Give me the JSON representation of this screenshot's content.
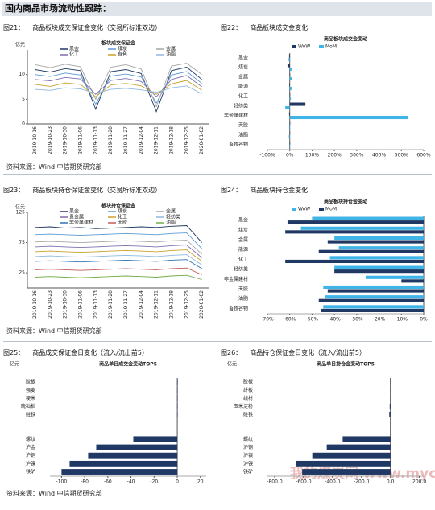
{
  "page_title": "国内商品市场流动性跟踪：",
  "sources": [
    "资料来源：Wind 中信期货研究部",
    "资料来源：Wind 中信期货研究部",
    "资料来源：Wind 中信期货研究部"
  ],
  "watermark": "我的煤炭网 www.mycoal.cn",
  "chart_data": [
    {
      "type": "line",
      "figure": "图21：",
      "caption": "商品板块成交保证金变化（交易所标准双边）",
      "title": "板块成交保证金",
      "y_unit": "亿元",
      "categories": [
        "2019-10-16",
        "2019-10-23",
        "2019-10-30",
        "2019-11-06",
        "2019-11-13",
        "2019-11-20",
        "2019-11-27",
        "2019-12-04",
        "2019-12-11",
        "2019-12-18",
        "2019-12-25",
        "2020-01-02"
      ],
      "ylim": [
        0,
        15
      ],
      "yticks": [
        0,
        5,
        10
      ],
      "series": [
        {
          "name": "黑金",
          "color": "#1f3864",
          "values": [
            11,
            10.5,
            11.2,
            10.8,
            3,
            10.6,
            11,
            10.2,
            2.5,
            10.8,
            11.5,
            9
          ]
        },
        {
          "name": "煤炭",
          "color": "#5b9bd5",
          "values": [
            10,
            9.6,
            10.3,
            9.9,
            4,
            9.7,
            10.1,
            9.5,
            4.2,
            9.9,
            10.6,
            8.2
          ]
        },
        {
          "name": "金属",
          "color": "#a5a5a5",
          "values": [
            12,
            11.4,
            12.1,
            11.6,
            5,
            11.5,
            12,
            11.1,
            3.5,
            11.7,
            12.3,
            10
          ]
        },
        {
          "name": "化工",
          "color": "#7f6fb0",
          "values": [
            9,
            8.7,
            9.4,
            9.1,
            6,
            8.8,
            9.2,
            8.6,
            5.5,
            9.0,
            9.8,
            7.5
          ]
        },
        {
          "name": "有色",
          "color": "#c9a227",
          "values": [
            8,
            7.6,
            8.3,
            8.0,
            5.5,
            7.9,
            8.2,
            7.7,
            6,
            8.1,
            8.8,
            6.8
          ]
        },
        {
          "name": "油脂",
          "color": "#8fb9e0",
          "values": [
            7,
            6.8,
            7.3,
            7.1,
            6.2,
            7.0,
            7.2,
            6.9,
            6.4,
            7.3,
            7.7,
            6.1
          ]
        }
      ]
    },
    {
      "type": "hbar",
      "figure": "图22：",
      "caption": "商品板块成交金变化",
      "title": "商品板块成交金变动",
      "categories": [
        "黑金",
        "煤炭",
        "金属",
        "能源",
        "化工",
        "轻纺类",
        "非金属建材",
        "天胶",
        "油脂",
        "畜牧谷物"
      ],
      "xlim": [
        -100,
        600
      ],
      "xticks": [
        {
          "value": -100,
          "label": "-100%"
        },
        {
          "value": 0,
          "label": "0%"
        },
        {
          "value": 100,
          "label": "100%"
        },
        {
          "value": 200,
          "label": "200%"
        },
        {
          "value": 300,
          "label": "300%"
        },
        {
          "value": 400,
          "label": "400%"
        },
        {
          "value": 500,
          "label": "500%"
        },
        {
          "value": 600,
          "label": "600%"
        }
      ],
      "series": [
        {
          "name": "WoW",
          "color": "#1f3864",
          "values": [
            -3,
            -10,
            2,
            -2,
            2,
            70,
            -3,
            2,
            1,
            1
          ]
        },
        {
          "name": "MoM",
          "color": "#3fb4e6",
          "values": [
            -5,
            8,
            10,
            8,
            5,
            -20,
            530,
            -3,
            -4,
            -2
          ]
        }
      ]
    },
    {
      "type": "line",
      "figure": "图23：",
      "caption": "商品板块持仓保证金变化（交易所标准双边）",
      "title": "板块持仓保证金",
      "y_unit": "亿元",
      "categories": [
        "2019-10-16",
        "2019-10-23",
        "2019-10-30",
        "2019-11-06",
        "2019-11-13",
        "2019-11-20",
        "2019-11-27",
        "2019-12-04",
        "2019-12-11",
        "2019-12-18",
        "2019-12-25",
        "2020-01-02"
      ],
      "ylim": [
        0,
        125
      ],
      "yticks": [
        25,
        75,
        125
      ],
      "series": [
        {
          "name": "黑金",
          "color": "#1f3864",
          "values": [
            100,
            101,
            99,
            100,
            98,
            99,
            100,
            101,
            100,
            102,
            103,
            75
          ]
        },
        {
          "name": "煤炭",
          "color": "#5b9bd5",
          "values": [
            88,
            89,
            88,
            87,
            88,
            89,
            90,
            89,
            88,
            90,
            91,
            65
          ]
        },
        {
          "name": "金属",
          "color": "#a5a5a5",
          "values": [
            76,
            77,
            76,
            75,
            76,
            77,
            78,
            77,
            76,
            78,
            79,
            56
          ]
        },
        {
          "name": "贵金属",
          "color": "#7f6fb0",
          "values": [
            68,
            69,
            68,
            67,
            68,
            69,
            70,
            69,
            68,
            70,
            71,
            50
          ]
        },
        {
          "name": "化工",
          "color": "#c9a227",
          "values": [
            60,
            61,
            60,
            59,
            60,
            61,
            62,
            61,
            60,
            62,
            63,
            44
          ]
        },
        {
          "name": "轻纺类",
          "color": "#8fb9e0",
          "values": [
            52,
            53,
            52,
            51,
            52,
            53,
            54,
            53,
            52,
            54,
            55,
            38
          ]
        },
        {
          "name": "非金属建材",
          "color": "#2e75b6",
          "values": [
            44,
            45,
            44,
            43,
            44,
            45,
            46,
            45,
            44,
            46,
            47,
            32
          ]
        },
        {
          "name": "天胶",
          "color": "#c55a5a",
          "values": [
            30,
            31,
            30,
            29,
            30,
            31,
            32,
            31,
            30,
            32,
            33,
            22
          ]
        },
        {
          "name": "油脂",
          "color": "#70ad47",
          "values": [
            18,
            19,
            18,
            17,
            18,
            19,
            20,
            19,
            18,
            20,
            21,
            14
          ]
        }
      ]
    },
    {
      "type": "hbar",
      "figure": "图24：",
      "caption": "商品板块持仓金变化",
      "title": "商品板块持仓金变动",
      "categories": [
        "黑金",
        "煤炭",
        "金属",
        "能源",
        "化工",
        "轻纺类",
        "非金属建材",
        "天胶",
        "油脂",
        "畜牧谷物"
      ],
      "xlim": [
        -70,
        0
      ],
      "xticks": [
        {
          "value": -70,
          "label": "-70%"
        },
        {
          "value": -60,
          "label": "-60%"
        },
        {
          "value": -50,
          "label": "-50%"
        },
        {
          "value": -40,
          "label": "-40%"
        },
        {
          "value": -30,
          "label": "-30%"
        },
        {
          "value": -20,
          "label": "-20%"
        },
        {
          "value": -10,
          "label": "-10%"
        },
        {
          "value": 0,
          "label": "0%"
        }
      ],
      "series": [
        {
          "name": "WoW",
          "color": "#3fb4e6",
          "values": [
            -50,
            -55,
            -40,
            -38,
            -42,
            -40,
            -26,
            -45,
            -44,
            -45
          ]
        },
        {
          "name": "MoM",
          "color": "#1f3864",
          "values": [
            -61,
            -62,
            -43,
            -47,
            -62,
            -40,
            -10,
            -43,
            -47,
            -46
          ]
        }
      ]
    },
    {
      "type": "hbar",
      "figure": "图25：",
      "caption": "商品成交保证金日变化（流入/流出前5）",
      "title": "商品单日成交金变动TOP5",
      "y_unit": "亿元",
      "categories": [
        "胶板",
        "强麦",
        "粳米",
        "晚籼稻",
        "硅铁",
        null,
        null,
        "螺纹",
        "沪金",
        "沪铜",
        "沪镍",
        "铁矿"
      ],
      "xlim": [
        -110,
        25
      ],
      "xticks": [
        -100,
        -80,
        -60,
        -40,
        -20,
        0,
        20
      ],
      "series": [
        {
          "color": "#1f3864",
          "values": [
            0.4,
            0.3,
            0.2,
            0.1,
            0.05,
            null,
            null,
            -38,
            -70,
            -77,
            -93,
            -100
          ]
        }
      ]
    },
    {
      "type": "hbar",
      "figure": "图26：",
      "caption": "商品持仓保证金日变化（流入/流出前5）",
      "title": "商品单日持仓金变动TOP5",
      "y_unit": "亿元",
      "categories": [
        "胶板",
        "纤板",
        "线材",
        "玉米淀粉",
        "硅铁",
        null,
        null,
        "螺纹",
        "沪铜",
        "沪银",
        "沪镍",
        "铁矿"
      ],
      "xlim": [
        -850,
        230
      ],
      "xticks": [
        {
          "value": -800,
          "label": "-800.0"
        },
        {
          "value": -600,
          "label": "-600.0"
        },
        {
          "value": -400,
          "label": "-400.0"
        },
        {
          "value": -200,
          "label": "-200.0"
        },
        {
          "value": 0,
          "label": "0.0"
        },
        {
          "value": 200,
          "label": "200.0"
        }
      ],
      "series": [
        {
          "color": "#1f3864",
          "values": [
            5,
            4,
            3,
            -5,
            -8,
            null,
            null,
            -330,
            -440,
            -540,
            -650,
            -610
          ]
        }
      ]
    }
  ]
}
